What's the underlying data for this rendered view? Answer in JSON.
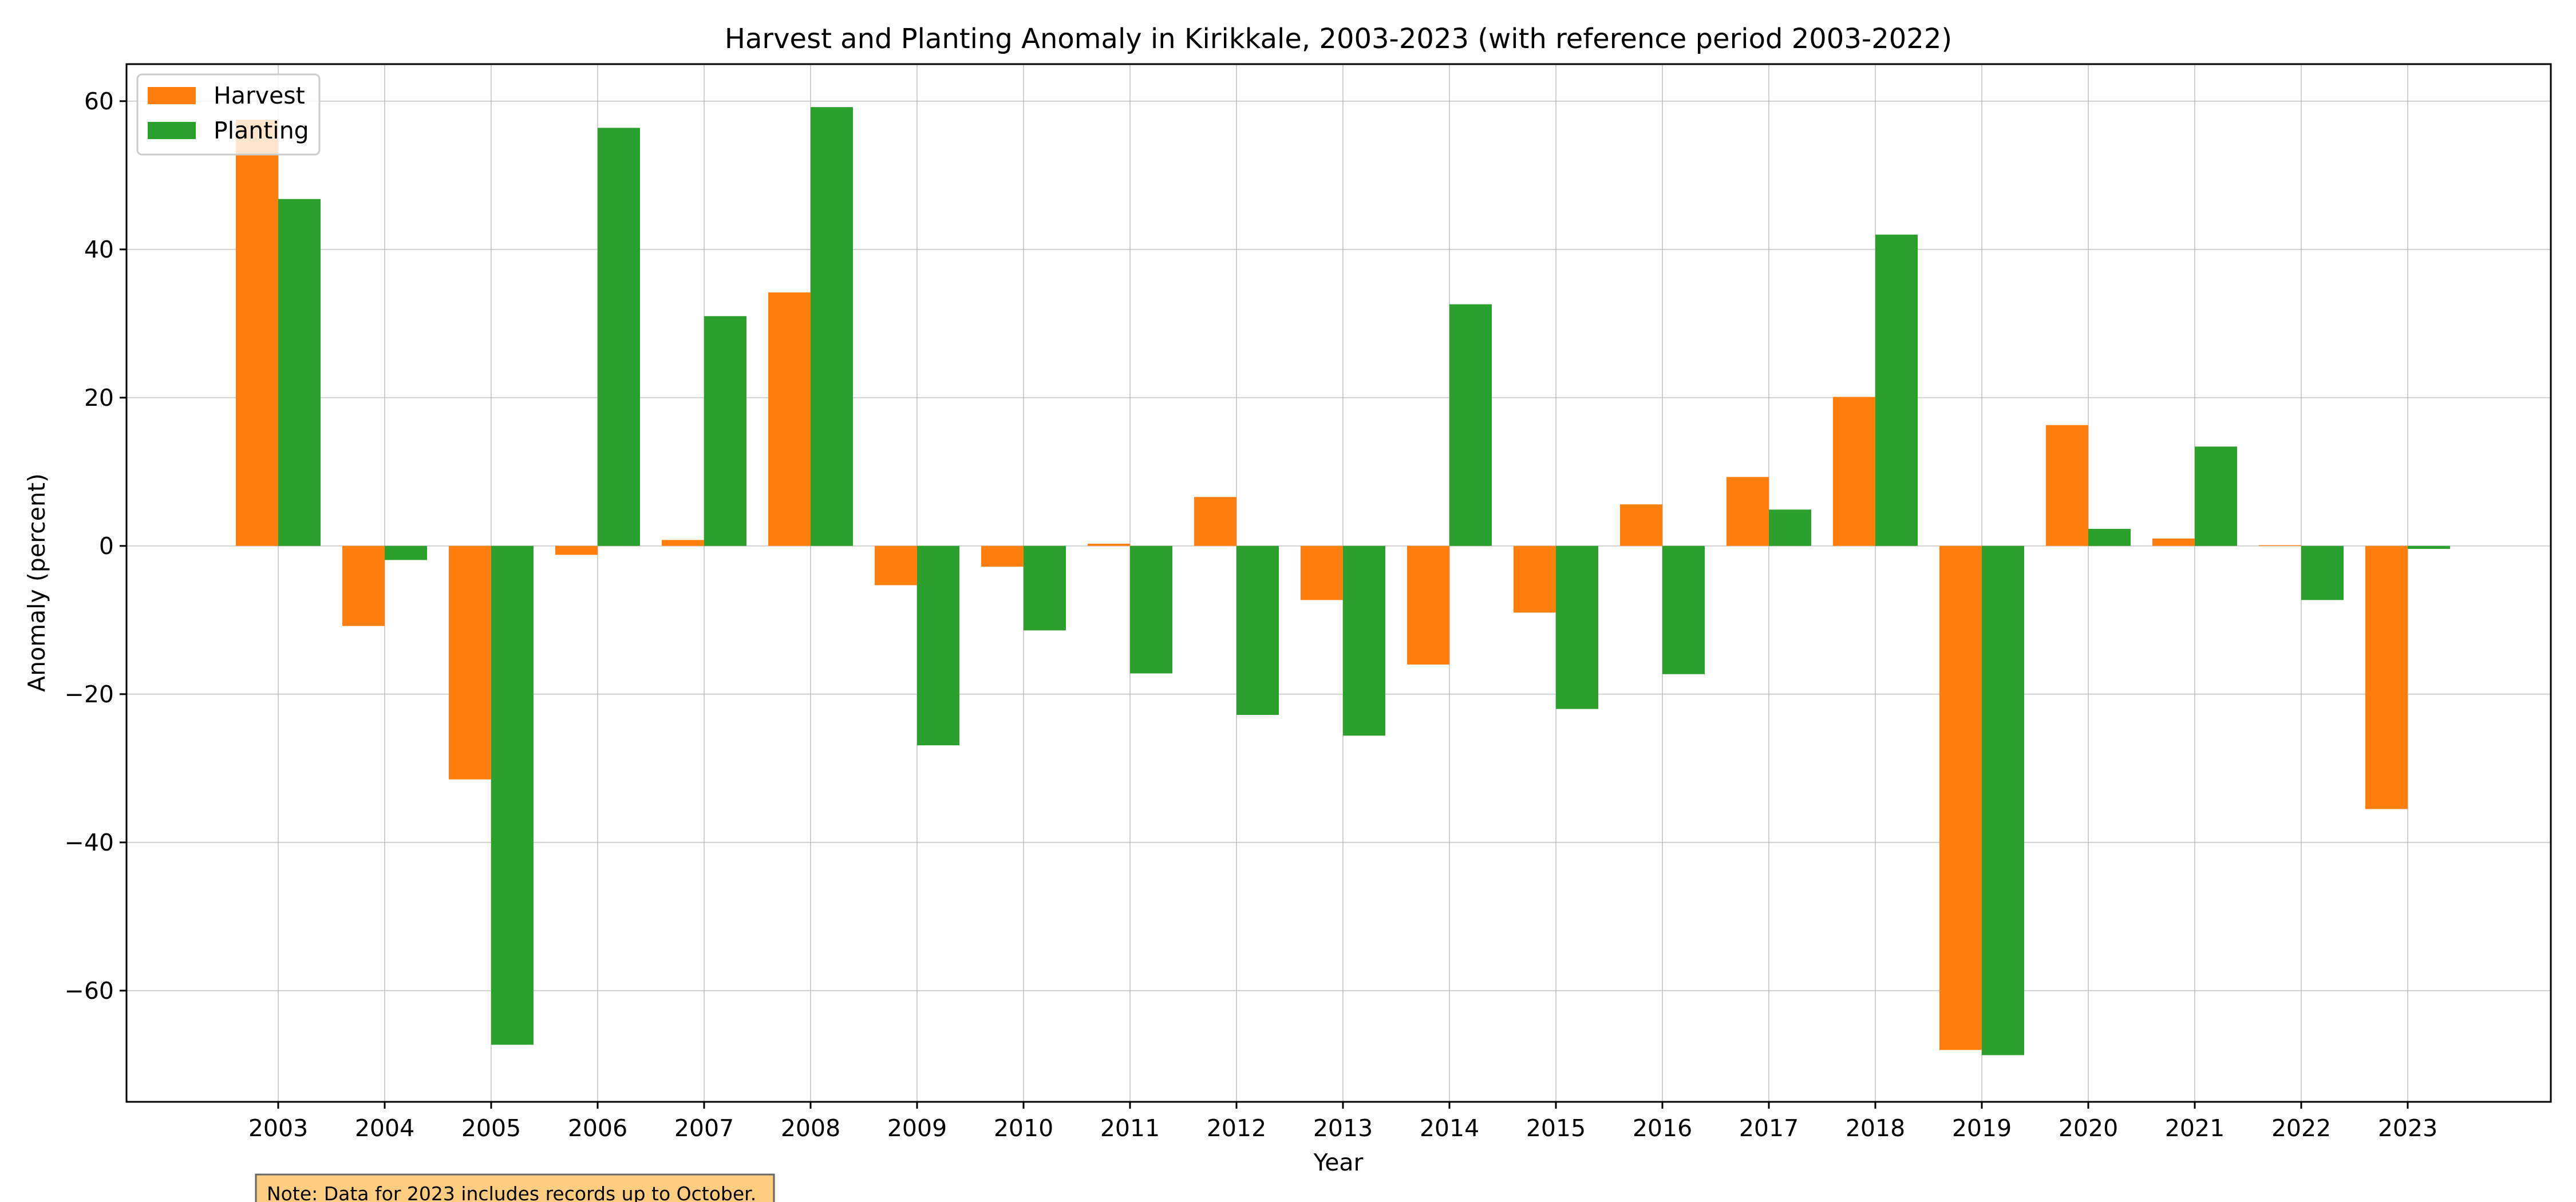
{
  "chart_data": {
    "type": "bar",
    "title": "Harvest and Planting Anomaly in Kirikkale, 2003-2023 (with reference period 2003-2022)",
    "xlabel": "Year",
    "ylabel": "Anomaly (percent)",
    "ylim": [
      -75,
      65
    ],
    "yticks": [
      -60,
      -40,
      -20,
      0,
      20,
      40,
      60
    ],
    "ytick_labels": [
      "−60",
      "−40",
      "−20",
      "0",
      "20",
      "40",
      "60"
    ],
    "grid": true,
    "legend_position": "upper-left",
    "categories": [
      "2003",
      "2004",
      "2005",
      "2006",
      "2007",
      "2008",
      "2009",
      "2010",
      "2011",
      "2012",
      "2013",
      "2014",
      "2015",
      "2016",
      "2017",
      "2018",
      "2019",
      "2020",
      "2021",
      "2022",
      "2023"
    ],
    "series": [
      {
        "name": "Harvest",
        "color": "#ff7f0e",
        "values": [
          57.5,
          -10.8,
          -31.5,
          -1.2,
          0.8,
          34.2,
          -5.3,
          -2.8,
          0.3,
          6.6,
          -7.3,
          -16.0,
          -9.0,
          5.6,
          9.3,
          20.1,
          -68.0,
          16.3,
          1.0,
          0.1,
          -35.5
        ]
      },
      {
        "name": "Planting",
        "color": "#2ca02c",
        "values": [
          46.8,
          -1.9,
          -67.3,
          56.4,
          31.0,
          59.2,
          -26.9,
          -11.4,
          -17.2,
          -22.8,
          -25.6,
          32.6,
          -22.0,
          -17.3,
          4.9,
          42.0,
          -68.7,
          2.3,
          13.4,
          -7.3,
          -0.4
        ]
      }
    ]
  },
  "note": {
    "text": "Note: Data for 2023 includes records up to October.",
    "background": "#ffcc80"
  }
}
